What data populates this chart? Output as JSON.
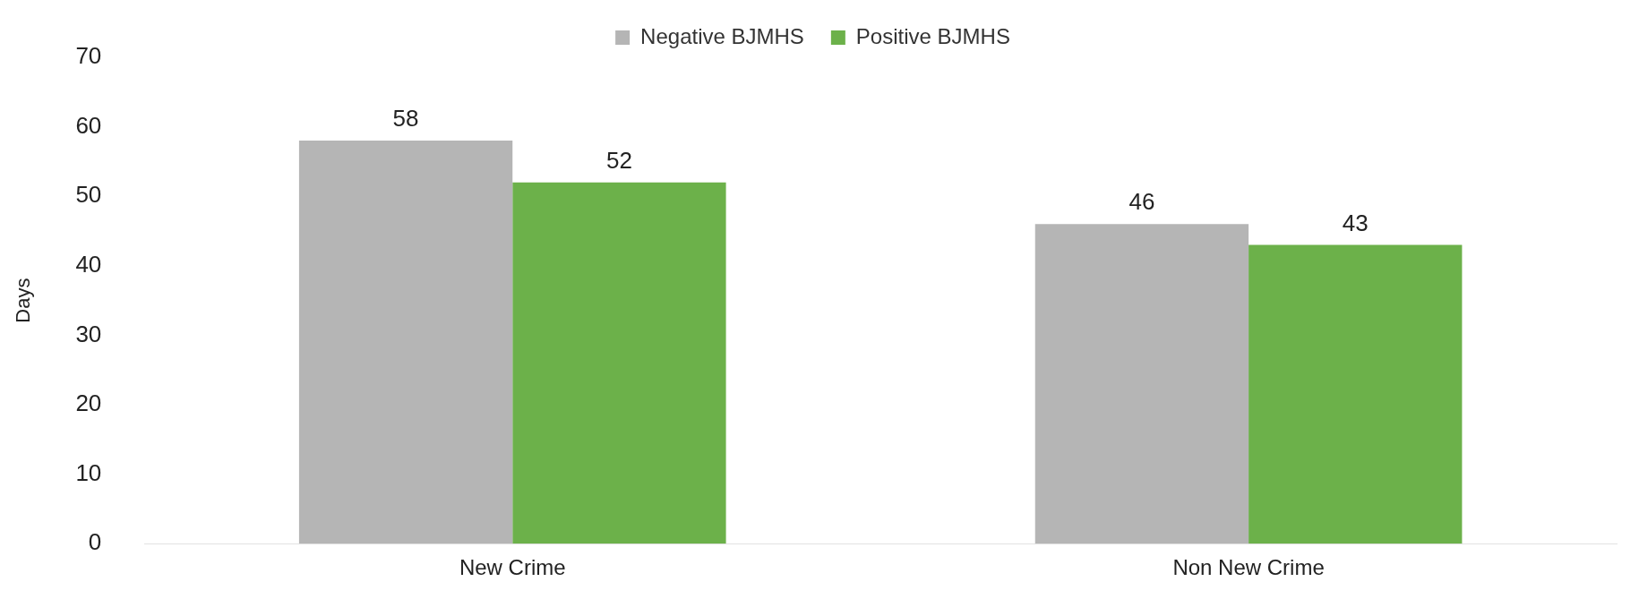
{
  "chart_data": {
    "type": "bar",
    "ylabel": "Days",
    "categories": [
      "New Crime",
      "Non New Crime"
    ],
    "series": [
      {
        "name": "Negative BJMHS",
        "color": "#b5b5b5",
        "values": [
          58,
          46
        ]
      },
      {
        "name": "Positive BJMHS",
        "color": "#6cb14a",
        "values": [
          52,
          43
        ]
      }
    ],
    "ylim": [
      0,
      70
    ],
    "yticks": [
      0,
      10,
      20,
      30,
      40,
      50,
      60,
      70
    ],
    "grid": false,
    "legend": "top",
    "data_labels": true
  }
}
